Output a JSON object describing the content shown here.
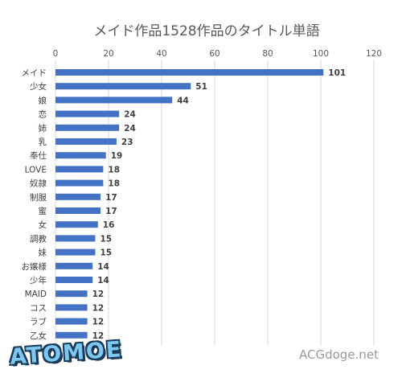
{
  "chart_data": {
    "type": "bar",
    "orientation": "horizontal",
    "title": "メイド作品1528作品のタイトル単語",
    "categories": [
      "メイド",
      "少女",
      "娘",
      "恋",
      "姉",
      "乳",
      "奉仕",
      "LOVE",
      "奴隷",
      "制服",
      "蜜",
      "女",
      "調教",
      "妹",
      "お嬢様",
      "少年",
      "MAID",
      "コス",
      "ラブ",
      "乙女"
    ],
    "values": [
      101,
      51,
      44,
      24,
      24,
      23,
      19,
      18,
      18,
      17,
      17,
      16,
      15,
      15,
      14,
      14,
      12,
      12,
      12,
      12
    ],
    "xticks": [
      "0",
      "20",
      "40",
      "60",
      "80",
      "100",
      "120"
    ],
    "xlim": [
      0,
      120
    ],
    "grid": true,
    "bar_color": "#4472c4",
    "axis_position": "top"
  },
  "watermarks": {
    "left": "ATOMOE",
    "right": "ACGdoge.net"
  }
}
